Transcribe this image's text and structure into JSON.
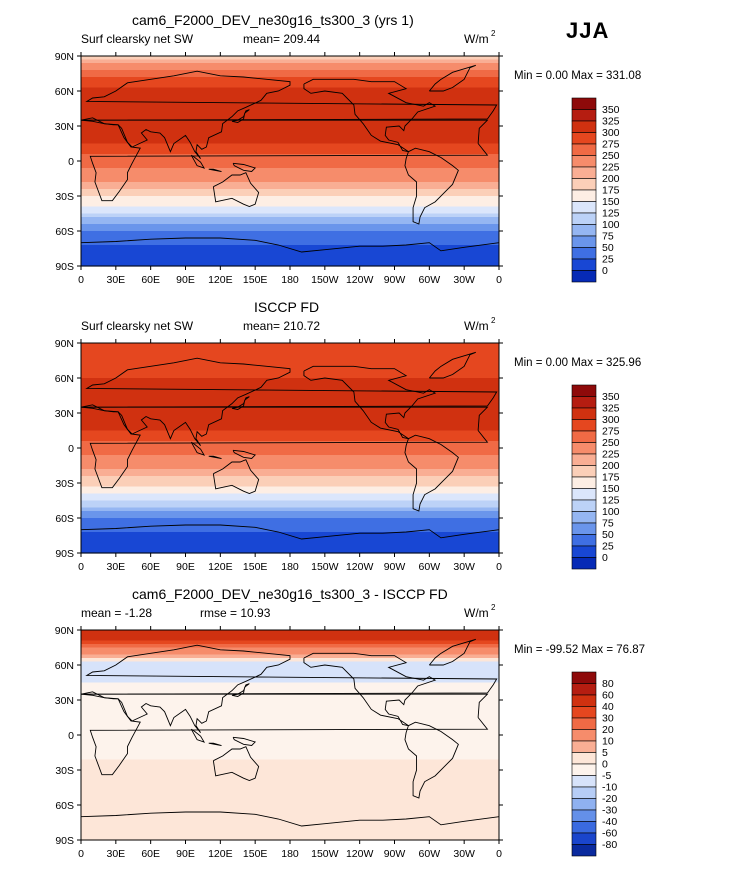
{
  "season": "JJA",
  "units": "W/m",
  "units_exp": "2",
  "panels": [
    {
      "title": "cam6_F2000_DEV_ne30g16_ts300_3 (yrs 1)",
      "left_label": "Surf clearsky net SW",
      "stat_label": "mean= 209.44",
      "stat2_label": "",
      "min_max": "Min =    0.00  Max =  331.08"
    },
    {
      "title": "ISCCP FD",
      "left_label": "Surf clearsky net SW",
      "stat_label": "mean= 210.72",
      "stat2_label": "",
      "min_max": "Min =    0.00  Max =  325.96"
    },
    {
      "title": "cam6_F2000_DEV_ne30g16_ts300_3 - ISCCP FD",
      "left_label": "mean =   -1.28",
      "stat_label": "rmse =   10.93",
      "stat2_label": "",
      "min_max": "Min =  -99.52  Max =   76.87"
    }
  ],
  "chart_data": [
    {
      "type": "heatmap",
      "title": "cam6_F2000_DEV_ne30g16_ts300_3 (yrs 1)",
      "xticks": [
        "0",
        "30E",
        "60E",
        "90E",
        "120E",
        "150E",
        "180",
        "150W",
        "120W",
        "90W",
        "60W",
        "30W",
        "0"
      ],
      "yticks": [
        "90N",
        "60N",
        "30N",
        "0",
        "30S",
        "60S",
        "90S"
      ],
      "xlim": [
        0,
        360
      ],
      "ylim": [
        -90,
        90
      ],
      "colorbar_levels": [
        "350",
        "325",
        "300",
        "275",
        "250",
        "225",
        "200",
        "175",
        "150",
        "125",
        "100",
        "75",
        "50",
        "25",
        "0"
      ],
      "colorbar_colors": [
        "#8e0a0a",
        "#b51d11",
        "#d03110",
        "#e5471f",
        "#f06a45",
        "#f68c6b",
        "#f9ae94",
        "#fbcfb8",
        "#fdeee4",
        "#dbe6fb",
        "#bcd2f7",
        "#95b6f2",
        "#6a95eb",
        "#3f6fe3",
        "#1847d4",
        "#062ab6"
      ],
      "zonal_profile": {
        "lat": [
          90,
          75,
          60,
          45,
          30,
          15,
          0,
          -15,
          -30,
          -45,
          -60,
          -75,
          -90
        ],
        "value": [
          185,
          270,
          305,
          320,
          320,
          300,
          260,
          230,
          180,
          120,
          50,
          15,
          5
        ]
      }
    },
    {
      "type": "heatmap",
      "title": "ISCCP FD",
      "xticks": [
        "0",
        "30E",
        "60E",
        "90E",
        "120E",
        "150E",
        "180",
        "150W",
        "120W",
        "90W",
        "60W",
        "30W",
        "0"
      ],
      "yticks": [
        "90N",
        "60N",
        "30N",
        "0",
        "30S",
        "60S",
        "90S"
      ],
      "xlim": [
        0,
        360
      ],
      "ylim": [
        -90,
        90
      ],
      "colorbar_levels": [
        "350",
        "325",
        "300",
        "275",
        "250",
        "225",
        "200",
        "175",
        "150",
        "125",
        "100",
        "75",
        "50",
        "25",
        "0"
      ],
      "colorbar_colors": [
        "#8e0a0a",
        "#b51d11",
        "#d03110",
        "#e5471f",
        "#f06a45",
        "#f68c6b",
        "#f9ae94",
        "#fbcfb8",
        "#fdeee4",
        "#dbe6fb",
        "#bcd2f7",
        "#95b6f2",
        "#6a95eb",
        "#3f6fe3",
        "#1847d4",
        "#062ab6"
      ],
      "zonal_profile": {
        "lat": [
          90,
          75,
          60,
          45,
          30,
          15,
          0,
          -15,
          -30,
          -45,
          -60,
          -75,
          -90
        ],
        "value": [
          300,
          280,
          300,
          315,
          318,
          300,
          262,
          232,
          182,
          122,
          52,
          15,
          5
        ]
      }
    },
    {
      "type": "heatmap",
      "title": "cam6_F2000_DEV_ne30g16_ts300_3 - ISCCP FD",
      "xticks": [
        "0",
        "30E",
        "60E",
        "90E",
        "120E",
        "150E",
        "180",
        "150W",
        "120W",
        "90W",
        "60W",
        "30W",
        "0"
      ],
      "yticks": [
        "90N",
        "60N",
        "30N",
        "0",
        "30S",
        "60S",
        "90S"
      ],
      "xlim": [
        0,
        360
      ],
      "ylim": [
        -90,
        90
      ],
      "colorbar_levels": [
        "80",
        "60",
        "40",
        "30",
        "20",
        "10",
        "5",
        "0",
        "-5",
        "-10",
        "-20",
        "-30",
        "-40",
        "-60",
        "-80"
      ],
      "colorbar_colors": [
        "#8e0a0a",
        "#b51d11",
        "#d03110",
        "#e5471f",
        "#f06a45",
        "#f68c6b",
        "#f9ae94",
        "#fde6d8",
        "#fdf3ec",
        "#d7e3fa",
        "#b6cdf6",
        "#8fb1f0",
        "#6490e9",
        "#3a6ae0",
        "#1a45cc",
        "#0a2a9e"
      ],
      "zonal_profile": {
        "lat": [
          90,
          75,
          60,
          45,
          30,
          15,
          0,
          -15,
          -30,
          -45,
          -60,
          -75,
          -90
        ],
        "value": [
          60,
          20,
          -8,
          -5,
          -3,
          -4,
          -2,
          -2,
          2,
          1,
          0,
          0,
          0
        ]
      }
    }
  ]
}
